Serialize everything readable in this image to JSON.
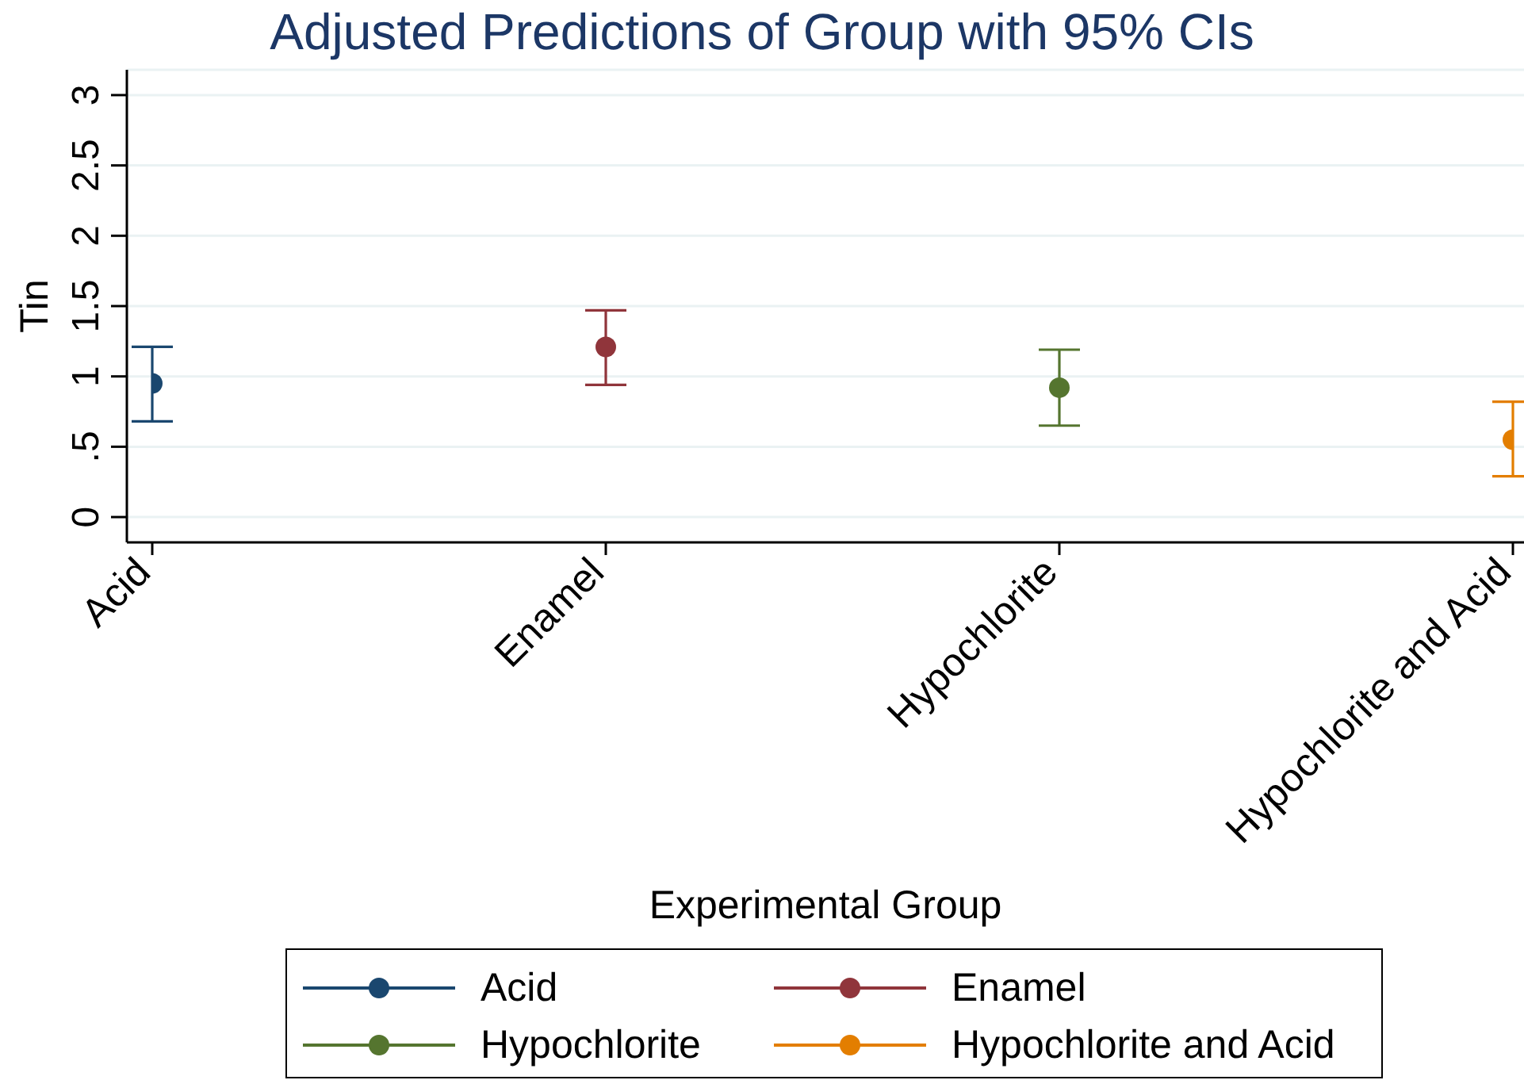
{
  "chart_data": {
    "type": "scatter",
    "title": "Adjusted Predictions of Group with 95% CIs",
    "xlabel": "Experimental Group",
    "ylabel": "Tin",
    "categories": [
      "Acid",
      "Enamel",
      "Hypochlorite",
      "Hypochlorite and Acid"
    ],
    "series": [
      {
        "name": "Acid",
        "color": "#1a476f",
        "values": [
          0.95,
          null,
          null,
          null
        ],
        "errors": [
          [
            0.68,
            1.21
          ],
          null,
          null,
          null
        ]
      },
      {
        "name": "Enamel",
        "color": "#90353b",
        "values": [
          null,
          1.21,
          null,
          null
        ],
        "errors": [
          null,
          [
            0.94,
            1.47
          ],
          null,
          null
        ]
      },
      {
        "name": "Hypochlorite",
        "color": "#55752f",
        "values": [
          null,
          null,
          0.92,
          null
        ],
        "errors": [
          null,
          null,
          [
            0.65,
            1.19
          ],
          null
        ]
      },
      {
        "name": "Hypochlorite and Acid",
        "color": "#e37e00",
        "values": [
          null,
          null,
          null,
          0.55
        ],
        "errors": [
          null,
          null,
          null,
          [
            0.29,
            0.82
          ]
        ]
      }
    ],
    "ylim": [
      -0.18,
      3.18
    ],
    "yticks": [
      0,
      {
        "value": 0.5,
        "label": ".5"
      },
      1,
      1.5,
      2,
      2.5,
      3
    ],
    "grid": "y",
    "legend": "bottom",
    "marker": "circle"
  }
}
